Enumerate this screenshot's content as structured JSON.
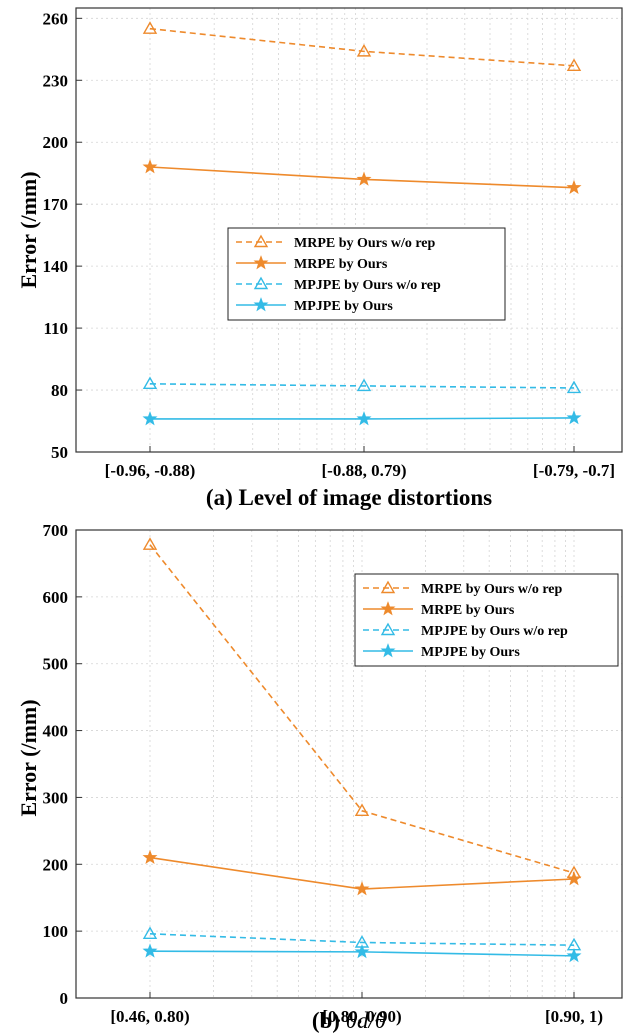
{
  "colors": {
    "orange": "#EE8A2C",
    "blue": "#33BBE6"
  },
  "chart_data": [
    {
      "type": "line",
      "caption": "(a) Level of image distortions",
      "ylabel": "Error (/mm)",
      "categories": [
        "[-0.96, -0.88)",
        "[-0.88, 0.79)",
        "[-0.79, -0.7]"
      ],
      "ylim": [
        50,
        265
      ],
      "yticks": [
        50,
        80,
        110,
        140,
        170,
        200,
        230,
        260
      ],
      "grid": true,
      "legend_position": "center",
      "series": [
        {
          "name": "MRPE by Ours w/o rep",
          "values": [
            255,
            244,
            237
          ],
          "color": "#EE8A2C",
          "dashed": true,
          "marker": "triangle"
        },
        {
          "name": "MRPE by Ours",
          "values": [
            188,
            182,
            178
          ],
          "color": "#EE8A2C",
          "dashed": false,
          "marker": "star"
        },
        {
          "name": "MPJPE by Ours w/o rep",
          "values": [
            83,
            82,
            81
          ],
          "color": "#33BBE6",
          "dashed": true,
          "marker": "triangle"
        },
        {
          "name": "MPJPE by Ours",
          "values": [
            66,
            66,
            66.5
          ],
          "color": "#33BBE6",
          "dashed": false,
          "marker": "star"
        }
      ]
    },
    {
      "type": "line",
      "caption_prefix": "(b)",
      "caption_math": "θd/θ",
      "ylabel": "Error (/mm)",
      "categories": [
        "[0.46, 0.80)",
        "[0.80, 0.90)",
        "[0.90, 1)"
      ],
      "ylim": [
        0,
        700
      ],
      "yticks": [
        0,
        100,
        200,
        300,
        400,
        500,
        600,
        700
      ],
      "grid": true,
      "legend_position": "top-right",
      "series": [
        {
          "name": "MRPE by Ours w/o rep",
          "values": [
            678,
            280,
            187
          ],
          "color": "#EE8A2C",
          "dashed": true,
          "marker": "triangle"
        },
        {
          "name": "MRPE by Ours",
          "values": [
            210,
            163,
            178
          ],
          "color": "#EE8A2C",
          "dashed": false,
          "marker": "star"
        },
        {
          "name": "MPJPE by Ours w/o rep",
          "values": [
            96,
            83,
            79
          ],
          "color": "#33BBE6",
          "dashed": true,
          "marker": "triangle"
        },
        {
          "name": "MPJPE by Ours",
          "values": [
            70,
            69,
            63
          ],
          "color": "#33BBE6",
          "dashed": false,
          "marker": "star"
        }
      ]
    }
  ]
}
